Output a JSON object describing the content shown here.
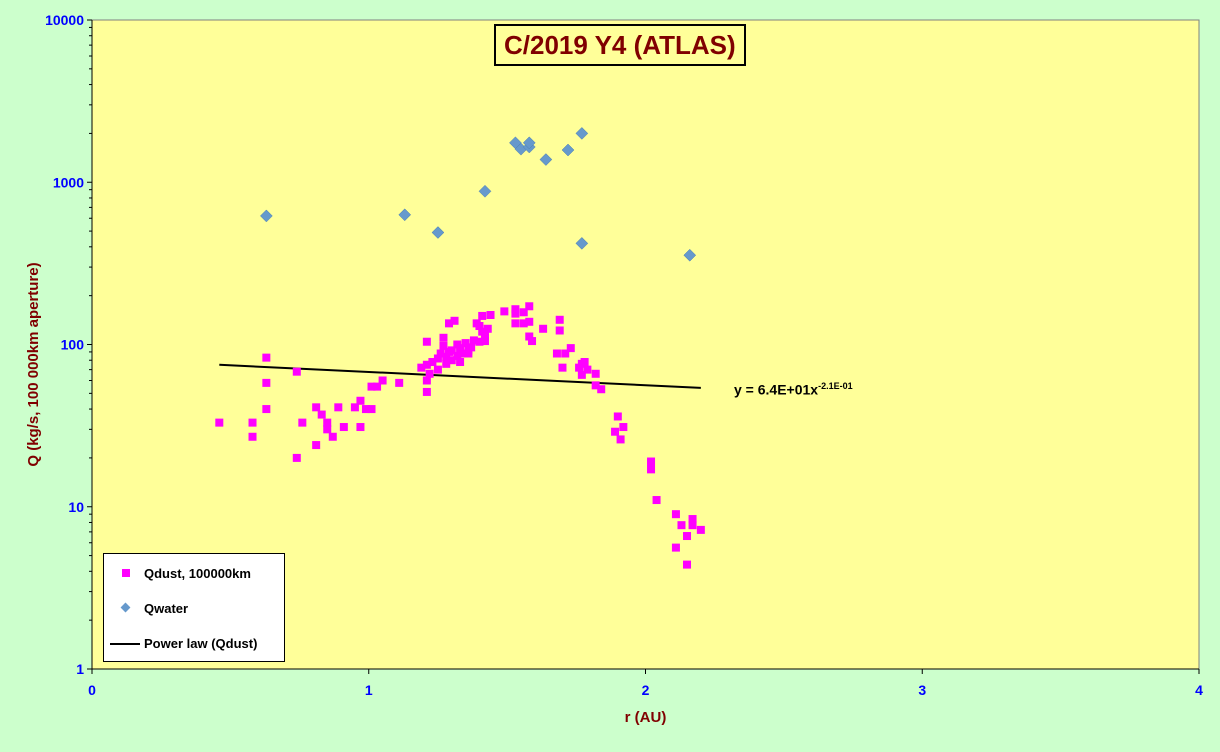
{
  "chart_data": {
    "type": "scatter",
    "title": "C/2019 Y4 (ATLAS)",
    "xlabel": "r (AU)",
    "ylabel": "Q (kg/s, 100 000km aperture)",
    "xlim": [
      0,
      4
    ],
    "ylim": [
      1,
      10000
    ],
    "yscale": "log",
    "x_ticks": [
      "0",
      "1",
      "2",
      "3",
      "4"
    ],
    "y_ticks": [
      "1",
      "10",
      "100",
      "1000",
      "10000"
    ],
    "grid": false,
    "legend_position": "bottom-left",
    "colors": {
      "qdust": "#ff00ff",
      "qwater": "#6699cc",
      "fit": "#000000",
      "plot_bg": "#ffff99",
      "page_bg": "#ccffcc",
      "axis_text": "#0000ff",
      "label_text": "#800000"
    },
    "series": [
      {
        "name": "Qdust, 100000km",
        "marker": "square",
        "points": [
          [
            0.46,
            33
          ],
          [
            0.58,
            33
          ],
          [
            0.58,
            27
          ],
          [
            0.63,
            83
          ],
          [
            0.63,
            58
          ],
          [
            0.63,
            40
          ],
          [
            0.74,
            68
          ],
          [
            0.74,
            20
          ],
          [
            0.76,
            33
          ],
          [
            0.81,
            24
          ],
          [
            0.81,
            41
          ],
          [
            0.83,
            37
          ],
          [
            0.85,
            33
          ],
          [
            0.85,
            30
          ],
          [
            0.87,
            27
          ],
          [
            0.89,
            41
          ],
          [
            0.91,
            31
          ],
          [
            0.95,
            41
          ],
          [
            0.97,
            45
          ],
          [
            0.97,
            31
          ],
          [
            0.99,
            40
          ],
          [
            1.01,
            40
          ],
          [
            1.01,
            55
          ],
          [
            1.03,
            55
          ],
          [
            1.05,
            60
          ],
          [
            1.11,
            58
          ],
          [
            1.19,
            72
          ],
          [
            1.21,
            51
          ],
          [
            1.21,
            104
          ],
          [
            1.21,
            60
          ],
          [
            1.21,
            75
          ],
          [
            1.22,
            66
          ],
          [
            1.23,
            78
          ],
          [
            1.25,
            70
          ],
          [
            1.25,
            82
          ],
          [
            1.26,
            88
          ],
          [
            1.27,
            110
          ],
          [
            1.27,
            98
          ],
          [
            1.28,
            76
          ],
          [
            1.28,
            84
          ],
          [
            1.29,
            135
          ],
          [
            1.29,
            90
          ],
          [
            1.3,
            80
          ],
          [
            1.3,
            92
          ],
          [
            1.31,
            140
          ],
          [
            1.32,
            100
          ],
          [
            1.32,
            85
          ],
          [
            1.33,
            78
          ],
          [
            1.33,
            95
          ],
          [
            1.34,
            88
          ],
          [
            1.35,
            102
          ],
          [
            1.36,
            92
          ],
          [
            1.36,
            88
          ],
          [
            1.37,
            96
          ],
          [
            1.38,
            106
          ],
          [
            1.39,
            135
          ],
          [
            1.4,
            104
          ],
          [
            1.4,
            130
          ],
          [
            1.41,
            150
          ],
          [
            1.41,
            120
          ],
          [
            1.42,
            112
          ],
          [
            1.42,
            105
          ],
          [
            1.43,
            125
          ],
          [
            1.44,
            152
          ],
          [
            1.49,
            160
          ],
          [
            1.53,
            165
          ],
          [
            1.53,
            135
          ],
          [
            1.53,
            155
          ],
          [
            1.56,
            135
          ],
          [
            1.56,
            158
          ],
          [
            1.58,
            138
          ],
          [
            1.58,
            172
          ],
          [
            1.58,
            112
          ],
          [
            1.59,
            105
          ],
          [
            1.63,
            125
          ],
          [
            1.68,
            88
          ],
          [
            1.69,
            142
          ],
          [
            1.69,
            122
          ],
          [
            1.7,
            72
          ],
          [
            1.71,
            88
          ],
          [
            1.73,
            95
          ],
          [
            1.76,
            72
          ],
          [
            1.77,
            65
          ],
          [
            1.77,
            76
          ],
          [
            1.78,
            78
          ],
          [
            1.79,
            70
          ],
          [
            1.82,
            66
          ],
          [
            1.82,
            56
          ],
          [
            1.84,
            53
          ],
          [
            1.89,
            29
          ],
          [
            1.9,
            36
          ],
          [
            1.91,
            26
          ],
          [
            1.92,
            31
          ],
          [
            2.02,
            19
          ],
          [
            2.02,
            17
          ],
          [
            2.04,
            11
          ],
          [
            2.11,
            9
          ],
          [
            2.11,
            5.6
          ],
          [
            2.13,
            7.7
          ],
          [
            2.15,
            6.6
          ],
          [
            2.15,
            4.4
          ],
          [
            2.17,
            8.4
          ],
          [
            2.17,
            7.7
          ],
          [
            2.2,
            7.2
          ]
        ]
      },
      {
        "name": "Qwater",
        "marker": "diamond",
        "points": [
          [
            0.63,
            620
          ],
          [
            1.13,
            630
          ],
          [
            1.25,
            490
          ],
          [
            1.42,
            880
          ],
          [
            1.53,
            1750
          ],
          [
            1.55,
            1600
          ],
          [
            1.58,
            1650
          ],
          [
            1.58,
            1750
          ],
          [
            1.64,
            1380
          ],
          [
            1.72,
            1580
          ],
          [
            1.77,
            420
          ],
          [
            1.77,
            2000
          ],
          [
            2.16,
            355
          ]
        ]
      },
      {
        "name": "Power law (Qdust)",
        "marker": "line",
        "points": [
          [
            0.46,
            75
          ],
          [
            2.2,
            54
          ]
        ]
      }
    ],
    "annotation": {
      "prefix": "y = 6.4E+01x",
      "exponent": "-2.1E-01"
    }
  }
}
